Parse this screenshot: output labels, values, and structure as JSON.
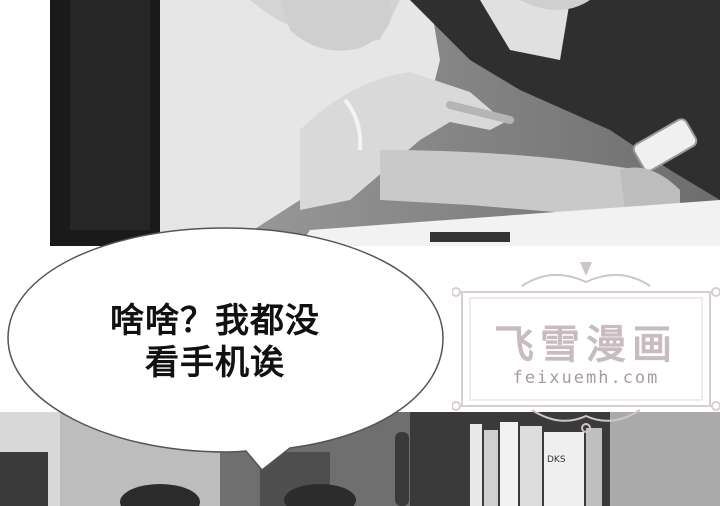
{
  "speech_bubble": {
    "line1": "啥啥？我都没",
    "line2": "看手机诶"
  },
  "watermark": {
    "title": "飞雪漫画",
    "url": "feixuemh.com"
  },
  "panels": {
    "bottom_book_spine": "DKS"
  },
  "colors": {
    "bubble_fill": "#ffffff",
    "bubble_stroke": "#555555",
    "watermark_pink": "#c9bcc1"
  }
}
